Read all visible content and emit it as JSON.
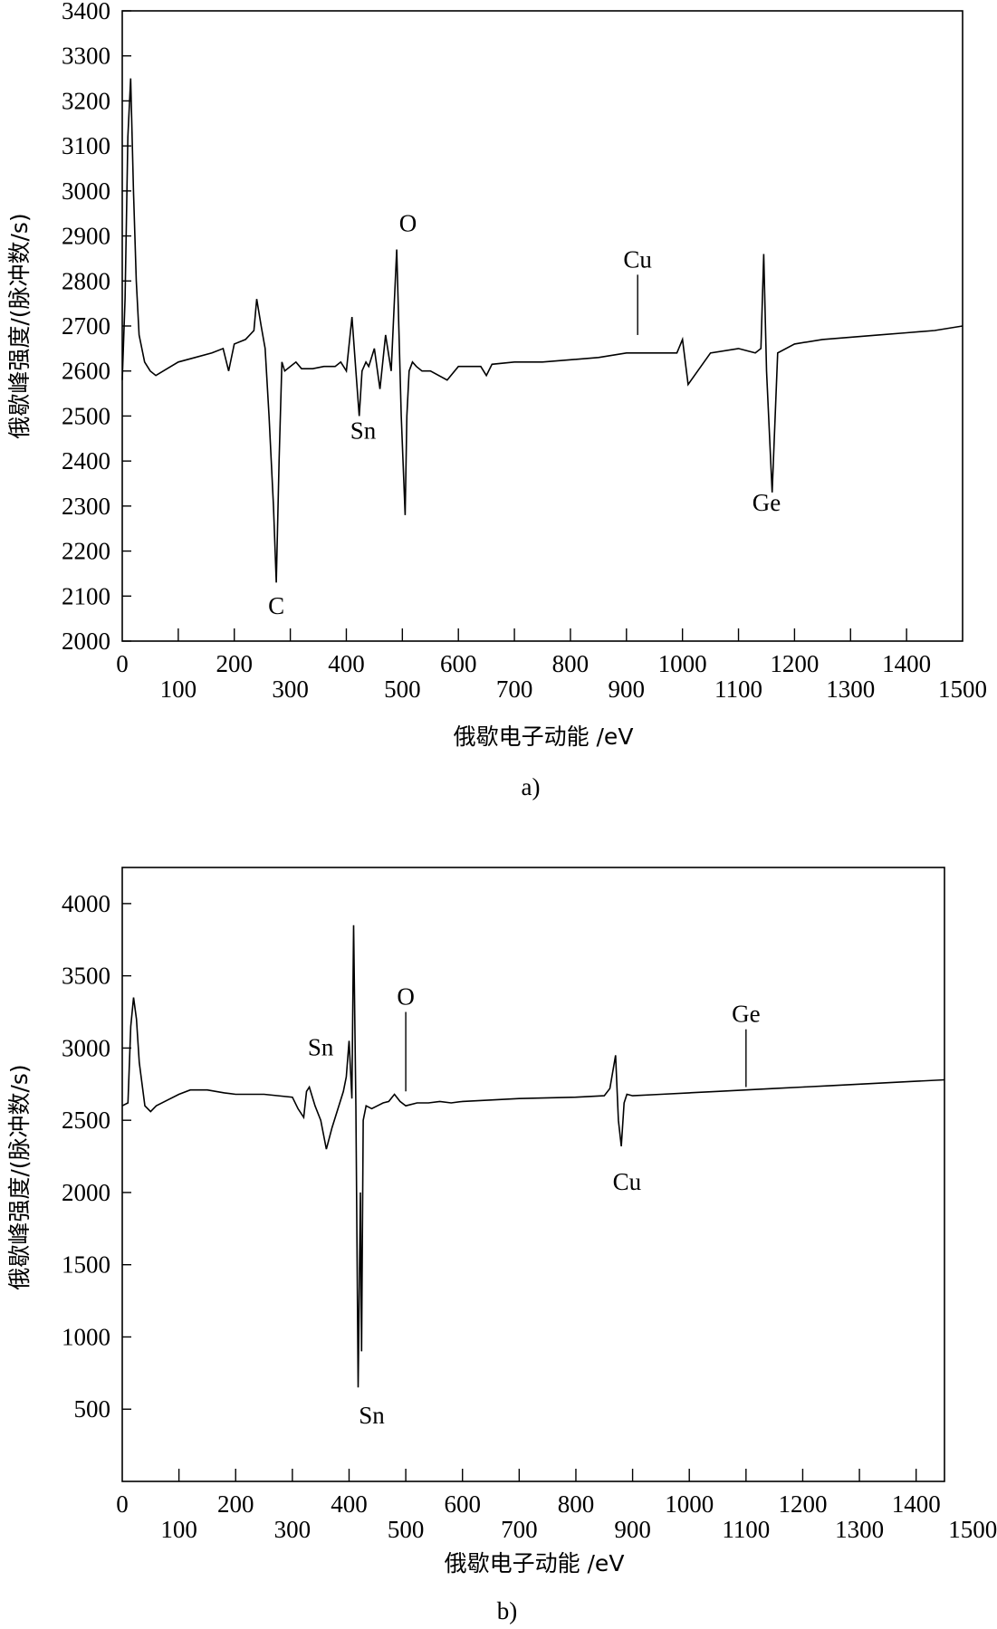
{
  "chart_data": [
    {
      "type": "line",
      "panel": "a",
      "caption": "a)",
      "xlabel": "俄歇电子动能 /eV",
      "ylabel": "俄歇峰强度/(脉冲数/s)",
      "xlim": [
        0,
        1500
      ],
      "ylim": [
        2000,
        3400
      ],
      "x_ticks_upper": [
        "0",
        "200",
        "400",
        "600",
        "800",
        "1000",
        "1200",
        "1400"
      ],
      "x_ticks_lower": [
        "100",
        "300",
        "500",
        "700",
        "900",
        "1100",
        "1300",
        "1500"
      ],
      "y_ticks": [
        "2000",
        "2100",
        "2200",
        "2300",
        "2400",
        "2500",
        "2600",
        "2700",
        "2800",
        "2900",
        "3000",
        "3100",
        "3200",
        "3300",
        "3400"
      ],
      "series": [
        {
          "x": [
            0,
            5,
            10,
            15,
            20,
            25,
            30,
            40,
            50,
            60,
            80,
            100,
            130,
            160,
            180,
            190,
            200,
            220,
            235,
            240,
            248,
            255,
            262,
            270,
            275,
            280,
            285,
            290,
            300,
            310,
            320,
            340,
            360,
            380,
            390,
            400,
            410,
            417,
            423,
            428,
            435,
            440,
            450,
            460,
            470,
            480,
            490,
            498,
            505,
            508,
            512,
            518,
            525,
            535,
            550,
            580,
            600,
            640,
            650,
            660,
            700,
            750,
            800,
            850,
            900,
            950,
            990,
            1000,
            1010,
            1050,
            1100,
            1130,
            1140,
            1145,
            1150,
            1160,
            1170,
            1200,
            1250,
            1300,
            1350,
            1400,
            1450,
            1500
          ],
          "y": [
            2580,
            2760,
            3120,
            3250,
            3000,
            2800,
            2680,
            2620,
            2600,
            2590,
            2605,
            2620,
            2630,
            2640,
            2650,
            2600,
            2660,
            2670,
            2690,
            2760,
            2700,
            2650,
            2500,
            2300,
            2130,
            2400,
            2620,
            2600,
            2610,
            2620,
            2605,
            2605,
            2610,
            2610,
            2620,
            2600,
            2720,
            2600,
            2500,
            2600,
            2620,
            2610,
            2650,
            2560,
            2680,
            2600,
            2870,
            2500,
            2280,
            2500,
            2600,
            2620,
            2610,
            2600,
            2600,
            2580,
            2610,
            2610,
            2590,
            2615,
            2620,
            2620,
            2625,
            2630,
            2640,
            2640,
            2640,
            2670,
            2570,
            2640,
            2650,
            2640,
            2650,
            2860,
            2600,
            2330,
            2640,
            2660,
            2670,
            2675,
            2680,
            2685,
            2690,
            2700
          ]
        }
      ],
      "annotations": [
        {
          "label": "C",
          "x": 275,
          "y": 2060
        },
        {
          "label": "Sn",
          "x": 430,
          "y": 2450
        },
        {
          "label": "O",
          "x": 510,
          "y": 2910
        },
        {
          "label": "Cu",
          "x": 920,
          "y": 2830,
          "line_to_y": 2680
        },
        {
          "label": "Ge",
          "x": 1150,
          "y": 2290
        }
      ]
    },
    {
      "type": "line",
      "panel": "b",
      "caption": "b)",
      "xlabel": "俄歇电子动能 /eV",
      "ylabel": "俄歇峰强度/(脉冲数/s)",
      "xlim": [
        0,
        1450
      ],
      "ylim": [
        0,
        4250
      ],
      "x_ticks_upper": [
        "0",
        "200",
        "400",
        "600",
        "800",
        "1000",
        "1200",
        "1400"
      ],
      "x_ticks_lower": [
        "100",
        "300",
        "500",
        "700",
        "900",
        "1100",
        "1300",
        "1500"
      ],
      "y_ticks": [
        "500",
        "1000",
        "1500",
        "2000",
        "2500",
        "3000",
        "3500",
        "4000"
      ],
      "series": [
        {
          "x": [
            0,
            10,
            15,
            20,
            25,
            30,
            40,
            50,
            55,
            60,
            80,
            100,
            120,
            150,
            180,
            200,
            250,
            300,
            310,
            320,
            325,
            330,
            340,
            350,
            355,
            360,
            370,
            390,
            395,
            400,
            405,
            408,
            412,
            416,
            420,
            422,
            425,
            430,
            440,
            450,
            460,
            470,
            480,
            490,
            500,
            520,
            540,
            560,
            580,
            600,
            700,
            800,
            850,
            860,
            870,
            875,
            880,
            885,
            890,
            900,
            950,
            1000,
            1050,
            1100,
            1150,
            1200,
            1250,
            1300,
            1350,
            1400,
            1450
          ],
          "y": [
            2600,
            2620,
            3150,
            3350,
            3200,
            2900,
            2600,
            2560,
            2580,
            2600,
            2640,
            2680,
            2710,
            2710,
            2690,
            2680,
            2680,
            2660,
            2580,
            2520,
            2700,
            2730,
            2600,
            2500,
            2400,
            2300,
            2450,
            2700,
            2800,
            3050,
            2650,
            3850,
            2600,
            650,
            2000,
            900,
            2500,
            2600,
            2580,
            2600,
            2620,
            2630,
            2680,
            2630,
            2600,
            2620,
            2620,
            2630,
            2620,
            2630,
            2650,
            2660,
            2670,
            2720,
            2950,
            2500,
            2320,
            2620,
            2680,
            2670,
            2680,
            2690,
            2700,
            2710,
            2720,
            2730,
            2740,
            2750,
            2760,
            2770,
            2780
          ]
        }
      ],
      "annotations": [
        {
          "label": "Sn",
          "x": 350,
          "y": 2950
        },
        {
          "label": "O",
          "x": 500,
          "y": 3300,
          "line_to_y": 2700
        },
        {
          "label": "Ge",
          "x": 1100,
          "y": 3180,
          "line_to_y": 2730
        },
        {
          "label": "Cu",
          "x": 890,
          "y": 2020
        },
        {
          "label": "Sn",
          "x": 440,
          "y": 400
        }
      ]
    }
  ]
}
